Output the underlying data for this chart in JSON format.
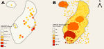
{
  "background_color": "#f5f0e8",
  "panel_A_label": "A",
  "panel_B_label": "B",
  "legend_A_title": "Density of\nhuman cases,\nper 100,000",
  "legend_B_title": "Density of cattle herds\nwith TB outbreaks,\nper 10,000",
  "legend_colors": [
    "#ffffff",
    "#fff5cc",
    "#ffcc44",
    "#ff8800",
    "#ff3300",
    "#cc0000"
  ],
  "legend_A_values": [
    "<0.01",
    "0.01-0.05",
    "0.05-0.1",
    "0.1-0.5",
    "0.5-1",
    ">1"
  ],
  "legend_B_values": [
    "<1",
    "1-5",
    "5-10",
    "10-50",
    "50-100",
    ">100"
  ],
  "border_color": "#999988",
  "outer_bg": "#f5f0e8",
  "map_A_base": "#f8f8f0",
  "map_B_base": "#ffe050",
  "ni_A_color": "#f8f8f0",
  "ni_B_color": "#ff6600"
}
